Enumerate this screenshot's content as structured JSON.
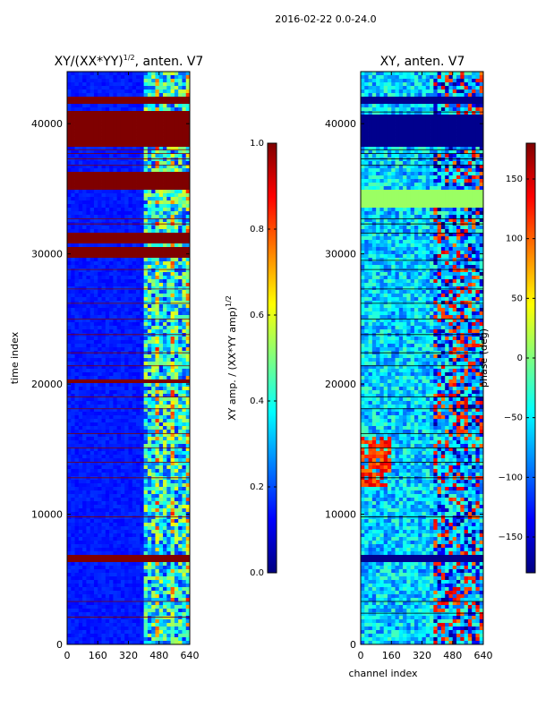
{
  "figure": {
    "suptitle": "2016-02-22 0.0-24.0",
    "shared_xlabel": "channel index"
  },
  "colors": {
    "jet": [
      "#00007f",
      "#0000ff",
      "#007fff",
      "#00ffff",
      "#7fff7f",
      "#ffff00",
      "#ff7f00",
      "#ff0000",
      "#7f0000"
    ]
  },
  "chart_data": [
    {
      "type": "heatmap",
      "title": "XY/(XX*YY)",
      "title_sup": "1/2",
      "title_suffix": ", anten. V7",
      "xlabel": "",
      "ylabel": "time index",
      "xlim": [
        0,
        640
      ],
      "ylim": [
        0,
        44000
      ],
      "xticks": [
        0,
        160,
        320,
        480,
        640
      ],
      "yticks": [
        0,
        10000,
        20000,
        30000,
        40000
      ],
      "colorbar": {
        "label": "XY amp. / (XX*YY amp)",
        "label_sup": "1/2",
        "range": [
          0.0,
          1.0
        ],
        "ticks": [
          "0.0",
          "0.2",
          "0.4",
          "0.6",
          "0.8",
          "1.0"
        ],
        "tick_values": [
          0,
          0.2,
          0.4,
          0.6,
          0.8,
          1.0
        ]
      },
      "background_value": 0.15,
      "active_channel_range": [
        400,
        640
      ],
      "saturated_time_bands": [
        [
          6200,
          6800
        ],
        [
          20000,
          20300
        ],
        [
          29700,
          30500
        ],
        [
          30800,
          31500
        ],
        [
          34900,
          36200
        ],
        [
          38200,
          40600
        ],
        [
          40800,
          41100
        ],
        [
          41400,
          42000
        ]
      ],
      "flag_lines": [
        2100,
        3300,
        9800,
        12800,
        14000,
        15100,
        16200,
        18100,
        19000,
        21400,
        22400,
        23800,
        25000,
        26200,
        27300,
        28800,
        32300,
        32700,
        36800,
        37300,
        37700,
        38000,
        40900
      ]
    },
    {
      "type": "heatmap",
      "title": "XY, anten. V7",
      "xlabel": "channel index",
      "ylabel": "",
      "xlim": [
        0,
        640
      ],
      "ylim": [
        0,
        44000
      ],
      "xticks": [
        0,
        160,
        320,
        480,
        640
      ],
      "yticks": [
        0,
        10000,
        20000,
        30000,
        40000
      ],
      "colorbar": {
        "label": "phase (deg)",
        "range": [
          -180,
          180
        ],
        "ticks": [
          "−150",
          "−100",
          "−50",
          "0",
          "50",
          "100",
          "150"
        ],
        "tick_values": [
          -150,
          -100,
          -50,
          0,
          50,
          100,
          150
        ]
      },
      "background_value": -60,
      "uniform_time_bands": [
        {
          "range": [
            6200,
            6800
          ],
          "value": -175
        },
        {
          "range": [
            33600,
            34900
          ],
          "value": 10
        },
        {
          "range": [
            38200,
            40600
          ],
          "value": -175
        },
        {
          "range": [
            41600,
            42100
          ],
          "value": -175
        }
      ],
      "flag_lines": [
        2400,
        3300,
        9800,
        12800,
        14000,
        15100,
        16200,
        18100,
        19000,
        21400,
        22400,
        23800,
        25000,
        26200,
        27300,
        28800,
        29500,
        31600,
        32300,
        32700,
        36800,
        37300,
        37700,
        38000,
        40900
      ]
    }
  ]
}
